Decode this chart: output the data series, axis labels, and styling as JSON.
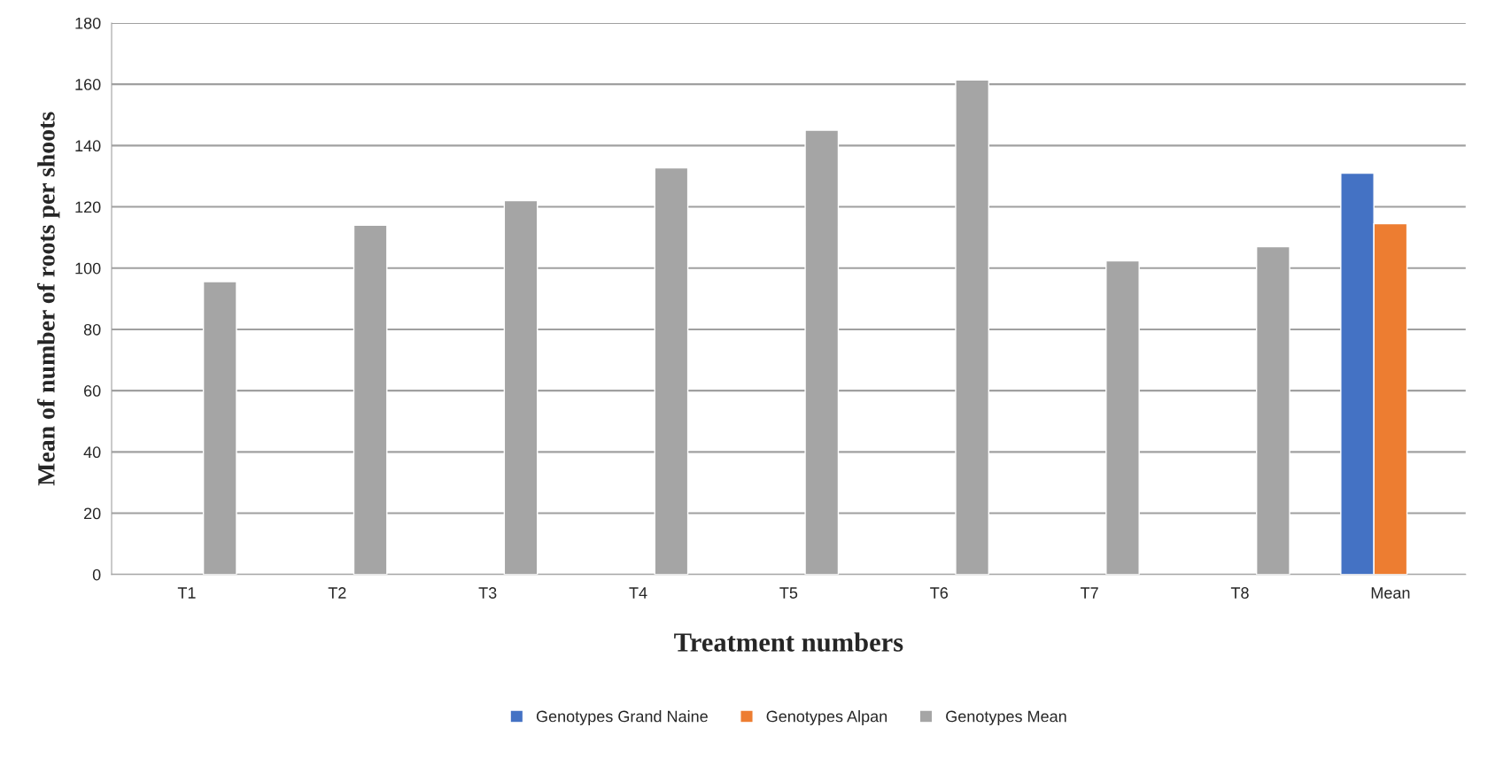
{
  "chart_data": {
    "type": "bar",
    "xlabel": "Treatment numbers",
    "ylabel": "Mean of number of roots per shoots",
    "categories": [
      "T1",
      "T2",
      "T3",
      "T4",
      "T5",
      "T6",
      "T7",
      "T8",
      "Mean"
    ],
    "series": [
      {
        "name": "Genotypes Grand Naine",
        "color": "#4472c4",
        "values": [
          null,
          null,
          null,
          null,
          null,
          null,
          null,
          null,
          131
        ]
      },
      {
        "name": "Genotypes Alpan",
        "color": "#ed7d31",
        "values": [
          null,
          null,
          null,
          null,
          null,
          null,
          null,
          null,
          114.5
        ]
      },
      {
        "name": "Genotypes Mean",
        "color": "#a5a5a5",
        "values": [
          95.6,
          114,
          122,
          132.7,
          145,
          161.4,
          102.4,
          107,
          null
        ]
      }
    ],
    "ylim": [
      0,
      180
    ],
    "yticks": [
      0,
      20,
      40,
      60,
      80,
      100,
      120,
      140,
      160,
      180
    ],
    "grid": "y",
    "legend": "bottom"
  }
}
